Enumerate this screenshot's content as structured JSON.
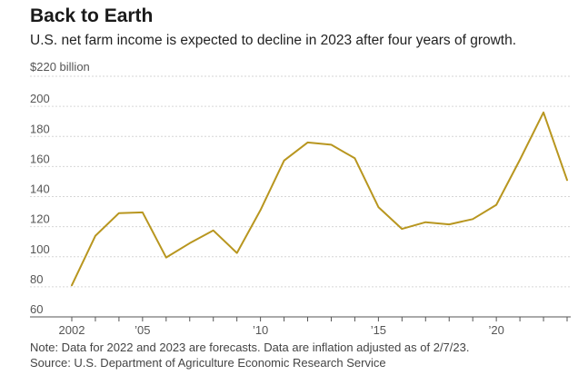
{
  "chart_data": {
    "type": "line",
    "title": "Back to Earth",
    "subtitle": "U.S. net farm income is expected to decline in 2023 after four years of growth.",
    "ylabel": "$220 billion",
    "ylim": [
      60,
      220
    ],
    "yticks": [
      60,
      80,
      100,
      120,
      140,
      160,
      180,
      200
    ],
    "xlim": [
      2002,
      2023
    ],
    "xticks": [
      {
        "value": 2002,
        "label": "2002"
      },
      {
        "value": 2005,
        "label": "’05"
      },
      {
        "value": 2010,
        "label": "’10"
      },
      {
        "value": 2015,
        "label": "’15"
      },
      {
        "value": 2020,
        "label": "’20"
      }
    ],
    "grid": true,
    "color": "#b8961f",
    "x": [
      2002,
      2003,
      2004,
      2005,
      2006,
      2007,
      2008,
      2009,
      2010,
      2011,
      2012,
      2013,
      2014,
      2015,
      2016,
      2017,
      2018,
      2019,
      2020,
      2021,
      2022,
      2023
    ],
    "values": [
      81,
      114,
      129,
      129.5,
      99.5,
      109,
      117.5,
      102.5,
      131,
      164,
      176,
      174.5,
      165.5,
      133,
      118.5,
      123,
      121.5,
      125,
      134.5,
      164.5,
      196,
      151
    ],
    "note": "Note: Data for 2022 and 2023 are forecasts. Data are inflation adjusted as of 2/7/23.",
    "source": "Source: U.S. Department of Agriculture Economic Research Service"
  }
}
